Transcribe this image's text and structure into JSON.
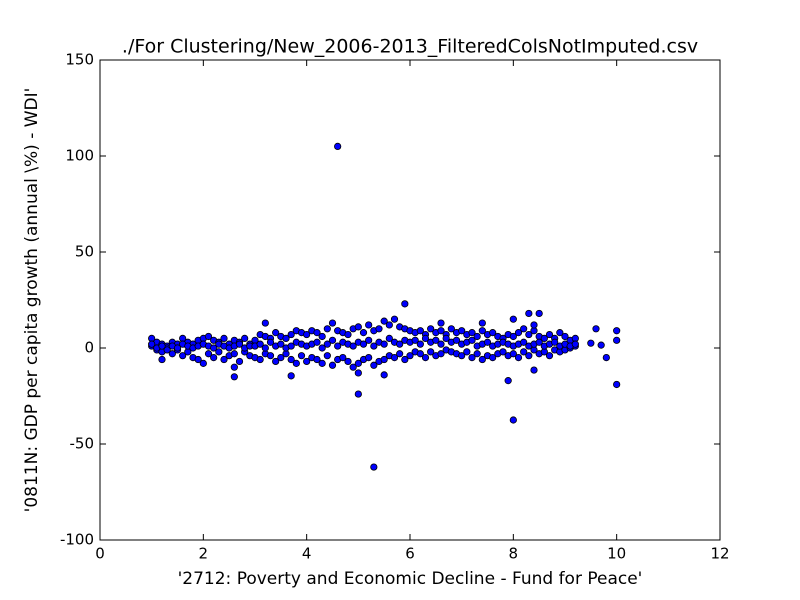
{
  "chart_data": {
    "type": "scatter",
    "title": "./For Clustering/New_2006-2013_FilteredColsNotImputed.csv",
    "x_label": "'2712: Poverty and Economic Decline - Fund for Peace'",
    "y_label": "'0811N: GDP per capita growth  (annual \\%) - WDI'",
    "color": "#0000ff",
    "xlim": [
      0,
      12
    ],
    "xticks": [
      0,
      2,
      4,
      6,
      8,
      10,
      12
    ],
    "ylim": [
      -100,
      150
    ],
    "yticks": [
      -100,
      -50,
      0,
      50,
      100,
      150
    ],
    "x": [
      1.0,
      1.1,
      1.2,
      1.3,
      1.4,
      1.5,
      1.6,
      1.7,
      1.8,
      1.9,
      2.0,
      2.1,
      2.2,
      2.3,
      2.4,
      2.5,
      2.6,
      2.7,
      2.8,
      2.9,
      3.0,
      3.1,
      3.2,
      3.3,
      3.4,
      3.5,
      3.6,
      3.7,
      3.8,
      3.9,
      4.0,
      4.1,
      4.2,
      4.3,
      4.4,
      4.5,
      4.6,
      4.7,
      4.8,
      4.9,
      5.0,
      5.1,
      5.2,
      5.3,
      5.4,
      5.5,
      5.6,
      5.7,
      5.8,
      5.9,
      6.0,
      6.1,
      6.2,
      6.3,
      6.4,
      6.5,
      6.6,
      6.7,
      6.8,
      6.9,
      7.0,
      7.1,
      7.2,
      7.3,
      7.4,
      7.5,
      7.6,
      7.7,
      7.8,
      7.9,
      8.0,
      8.1,
      8.2,
      8.3,
      8.4,
      8.5,
      8.6,
      8.7,
      8.8,
      8.9,
      9.0,
      9.1,
      9.2,
      1.0,
      1.1,
      1.2,
      1.3,
      1.4,
      1.5,
      1.6,
      1.7,
      1.8,
      1.9,
      2.0,
      2.1,
      2.2,
      2.3,
      2.4,
      2.5,
      2.6,
      2.7,
      2.8,
      2.9,
      3.0,
      3.1,
      3.2,
      3.3,
      3.4,
      3.5,
      3.6,
      3.7,
      3.8,
      3.9,
      4.0,
      4.1,
      4.2,
      4.3,
      4.4,
      4.5,
      4.6,
      4.7,
      4.8,
      4.9,
      5.0,
      5.1,
      5.2,
      5.3,
      5.4,
      5.5,
      5.6,
      5.7,
      5.8,
      5.9,
      6.0,
      6.1,
      6.2,
      6.3,
      6.4,
      6.5,
      6.6,
      6.7,
      6.8,
      6.9,
      7.0,
      7.1,
      7.2,
      7.3,
      7.4,
      7.5,
      7.6,
      7.7,
      7.8,
      7.9,
      8.0,
      8.1,
      8.2,
      8.3,
      8.4,
      8.5,
      8.6,
      8.7,
      8.8,
      8.9,
      9.0,
      9.1,
      9.2,
      1.0,
      1.1,
      1.2,
      1.3,
      1.4,
      1.5,
      1.6,
      1.7,
      1.8,
      1.9,
      2.0,
      2.1,
      2.2,
      2.3,
      2.4,
      2.5,
      2.6,
      2.7,
      2.8,
      2.9,
      3.0,
      3.1,
      3.2,
      3.3,
      3.4,
      3.5,
      3.6,
      3.7,
      3.8,
      3.9,
      4.0,
      4.1,
      4.2,
      4.3,
      4.4,
      4.5,
      4.6,
      4.7,
      4.8,
      4.9,
      5.0,
      5.1,
      5.2,
      5.3,
      5.4,
      5.5,
      5.6,
      5.7,
      5.8,
      5.9,
      6.0,
      6.1,
      6.2,
      6.3,
      6.4,
      6.5,
      6.6,
      6.7,
      6.8,
      6.9,
      7.0,
      7.1,
      7.2,
      7.3,
      7.4,
      7.5,
      7.6,
      7.7,
      7.8,
      7.9,
      8.0,
      8.1,
      8.2,
      8.3,
      8.4,
      8.5,
      8.6,
      8.7,
      8.8,
      8.9,
      9.0,
      9.1,
      9.2,
      4.6,
      5.3,
      8.0,
      5.0,
      10.0,
      7.9,
      8.4,
      5.9,
      8.3,
      8.5,
      10.0,
      9.6,
      3.2,
      2.6,
      2.6,
      3.7,
      5.0,
      5.5,
      1.2,
      9.8,
      10.0,
      9.5,
      9.7,
      8.0,
      8.4,
      7.4,
      6.6
    ],
    "values": [
      5,
      3,
      2,
      1,
      3,
      2,
      5,
      3,
      2,
      4,
      5,
      6,
      4,
      3,
      5,
      2,
      4,
      3,
      5,
      2,
      4,
      7,
      6,
      5,
      8,
      6,
      5,
      7,
      9,
      8,
      7,
      9,
      8,
      6,
      10,
      13,
      9,
      8,
      7,
      10,
      11,
      8,
      12,
      9,
      10,
      14,
      12,
      15,
      11,
      10,
      9,
      8,
      9,
      7,
      10,
      8,
      9,
      7,
      10,
      8,
      9,
      7,
      8,
      6,
      9,
      7,
      8,
      6,
      5,
      7,
      6,
      8,
      10,
      7,
      9,
      6,
      5,
      7,
      5,
      8,
      6,
      4,
      5,
      1,
      -1,
      -2,
      0,
      -3,
      -1,
      -4,
      -2,
      -5,
      -6,
      -8,
      -3,
      -5,
      -2,
      -6,
      -4,
      -3,
      -7,
      -2,
      -4,
      -5,
      -6,
      -3,
      -4,
      -7,
      -5,
      -3,
      -6,
      -8,
      -4,
      -7,
      -5,
      -6,
      -8,
      -4,
      -9,
      -6,
      -5,
      -7,
      -10,
      -8,
      -6,
      -5,
      -9,
      -7,
      -6,
      -4,
      -5,
      -3,
      -6,
      -4,
      -2,
      -3,
      -5,
      -2,
      -4,
      -3,
      -1,
      -2,
      -3,
      -4,
      -2,
      -5,
      -3,
      -6,
      -4,
      -5,
      -3,
      -2,
      -4,
      -3,
      -5,
      -2,
      -4,
      -1,
      -3,
      -2,
      -4,
      -1,
      -2,
      -1,
      0,
      1,
      2,
      0,
      1,
      -1,
      1,
      0,
      2,
      1,
      0,
      1,
      2,
      1,
      0,
      2,
      1,
      0,
      1,
      2,
      0,
      1,
      1,
      2,
      0,
      3,
      1,
      2,
      0,
      1,
      3,
      2,
      1,
      2,
      3,
      0,
      2,
      4,
      1,
      3,
      2,
      1,
      3,
      2,
      4,
      1,
      3,
      2,
      5,
      3,
      2,
      4,
      3,
      4,
      2,
      5,
      3,
      4,
      2,
      5,
      3,
      4,
      2,
      3,
      4,
      1,
      2,
      3,
      1,
      2,
      3,
      2,
      1,
      2,
      3,
      1,
      2,
      3,
      1,
      2,
      3,
      1,
      2,
      1,
      2,
      105,
      -62,
      -37.5,
      -24,
      -19,
      -17,
      -11.5,
      23,
      18,
      18,
      9,
      10,
      13,
      -10,
      -15,
      -14.5,
      -13,
      -14,
      -6,
      -5,
      4,
      2.5,
      1.5,
      15,
      12,
      13,
      13
    ]
  }
}
